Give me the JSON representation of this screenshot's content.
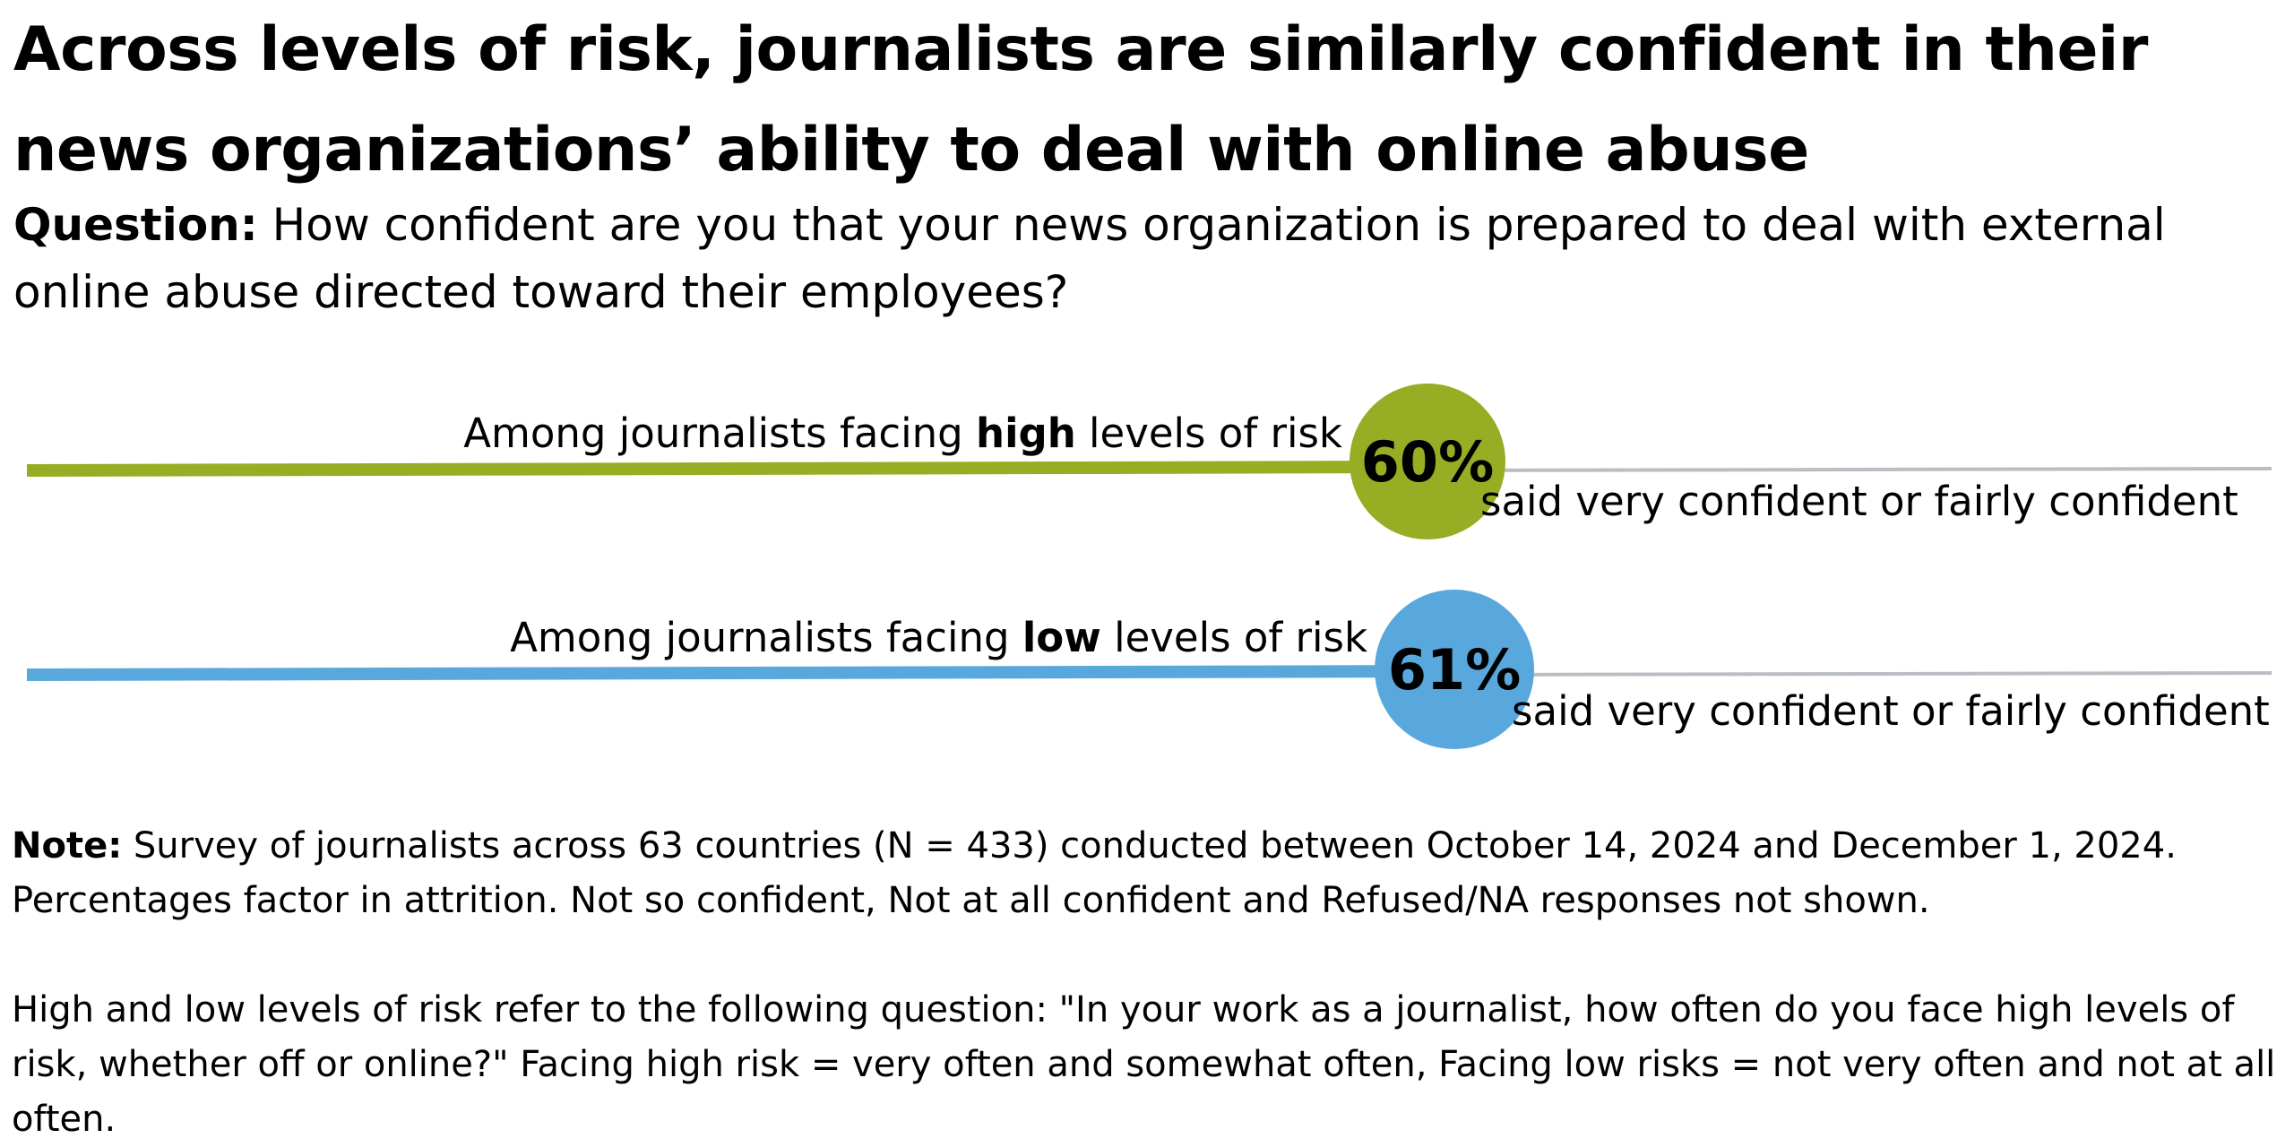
{
  "title": "Across levels of risk, journalists are similarly confident in their news organizations’ ability to deal with online abuse",
  "question": {
    "label": "Question:",
    "text": " How confident are you that your news organization is prepared to deal with external online abuse directed toward their employees?"
  },
  "chart_data": {
    "type": "bar",
    "orientation": "horizontal",
    "categories": [
      "high",
      "low"
    ],
    "values": [
      60,
      61
    ],
    "unit": "%",
    "xlim": [
      0,
      100
    ],
    "rows": [
      {
        "label_prefix": "Among journalists facing ",
        "label_bold": "high",
        "label_suffix": " levels of risk",
        "value_label": "60%",
        "caption": "said very confident or fairly confident",
        "color": "#97ad23"
      },
      {
        "label_prefix": "Among journalists facing ",
        "label_bold": "low",
        "label_suffix": " levels of risk",
        "value_label": "61%",
        "caption": "said very confident or fairly confident",
        "color": "#58a7dd"
      }
    ],
    "track_color": "#b8bec3"
  },
  "note": {
    "label": "Note:",
    "text1": " Survey of journalists across 63 countries (N = 433) conducted between October 14, 2024 and December 1, 2024. Percentages factor in attrition. Not so confident, Not at all confident and Refused/NA responses not shown.",
    "text2": "High and low levels of risk refer to the following question: \"In your work as a journalist, how often do you face high levels of risk, whether off or online?\" Facing high risk = very often and somewhat often, Facing low risks = not very often and not at all often."
  }
}
